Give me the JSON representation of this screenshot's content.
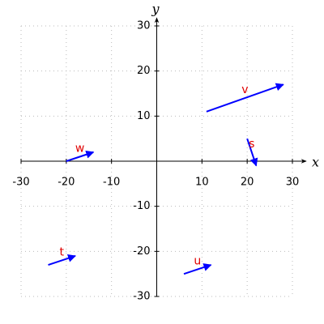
{
  "chart_data": {
    "type": "vector",
    "xlabel": "x",
    "ylabel": "y",
    "xlim": [
      -30,
      30
    ],
    "ylim": [
      -30,
      30
    ],
    "xticks": [
      -30,
      -20,
      -10,
      10,
      20,
      30
    ],
    "yticks": [
      -30,
      -20,
      -10,
      10,
      20,
      30
    ],
    "grid": true,
    "color": "#0000ff",
    "label_color": "#e00000",
    "vectors": [
      {
        "name": "v",
        "x": [
          11,
          28
        ],
        "y": [
          11,
          17
        ]
      },
      {
        "name": "s",
        "x": [
          20,
          22
        ],
        "y": [
          5,
          -1
        ]
      },
      {
        "name": "w",
        "x": [
          -20,
          -14
        ],
        "y": [
          0,
          2
        ]
      },
      {
        "name": "t",
        "x": [
          -24,
          -18
        ],
        "y": [
          -23,
          -21
        ]
      },
      {
        "name": "u",
        "x": [
          6,
          12
        ],
        "y": [
          -25,
          -23
        ]
      }
    ]
  }
}
